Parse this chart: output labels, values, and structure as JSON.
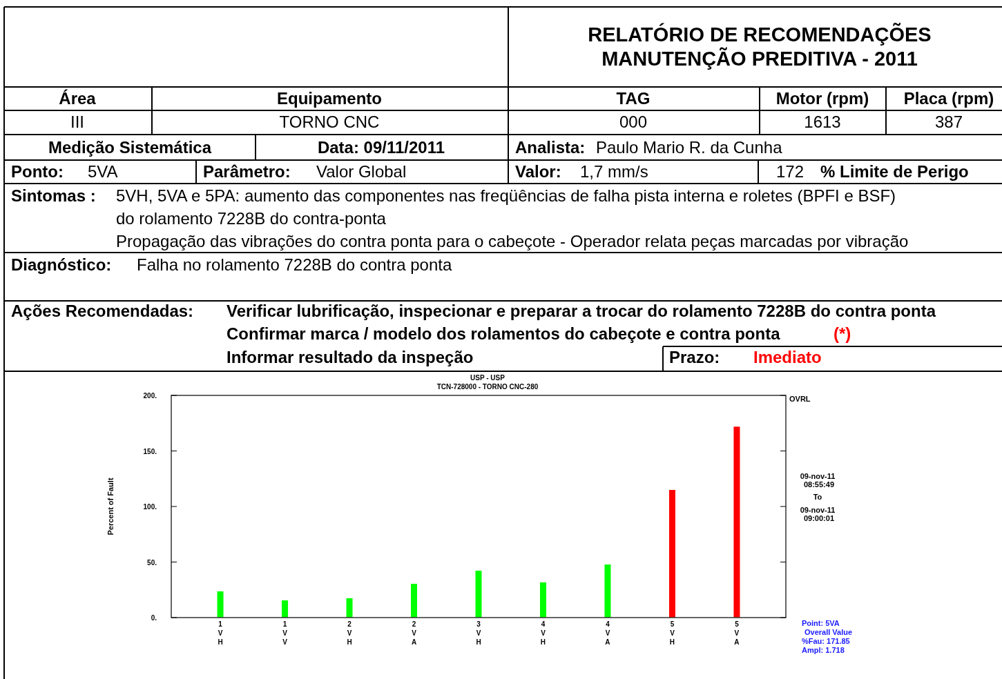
{
  "chart_data": {
    "type": "bar",
    "title": "USP  - USP",
    "subtitle": "TCN-728000 - TORNO CNC-280",
    "ylabel": "Percent of Fault",
    "categories": [
      "1VH",
      "1VV",
      "2VH",
      "2VA",
      "3VH",
      "4VH",
      "4VA",
      "5VH",
      "5VA"
    ],
    "values": [
      23.6,
      15.5,
      17.4,
      30.4,
      42.2,
      31.7,
      47.8,
      114.9,
      171.85
    ],
    "colors": [
      "#00ff00",
      "#00ff00",
      "#00ff00",
      "#00ff00",
      "#00ff00",
      "#00ff00",
      "#00ff00",
      "#ff0000",
      "#ff0000"
    ],
    "ylim": [
      0,
      200
    ],
    "yticks": [
      {
        "value": 0,
        "label": "0."
      },
      {
        "value": 50,
        "label": "50."
      },
      {
        "value": 100,
        "label": "100."
      },
      {
        "value": 150,
        "label": "150."
      },
      {
        "value": 200,
        "label": "200."
      }
    ],
    "grid": false,
    "annotations": [
      "RELATÓRIO DE RECOMENDAÇÕES",
      "MANUTENÇÃO PREDITIVA - 2011",
      "Área",
      "Equipamento",
      "TAG",
      "Motor (rpm)",
      "Placa (rpm)",
      "III",
      "TORNO CNC",
      "000",
      "1613",
      "387",
      "Medição Sistemática",
      "Data: 09/11/2011",
      "Analista:",
      "Paulo Mario R. da Cunha",
      "Ponto:",
      "5VA",
      "Parâmetro:",
      "Valor Global",
      "Valor:",
      "1,7  mm/s",
      "172",
      "% Limite de Perigo",
      "Sintomas :",
      "5VH, 5VA e 5PA: aumento das componentes nas freqüências de falha pista interna e roletes  (BPFI e BSF)",
      "do rolamento 7228B do contra-ponta",
      "Propagação das vibrações do contra ponta para o cabeçote - Operador relata peças marcadas por vibração",
      "Diagnóstico:",
      "Falha no rolamento 7228B do contra ponta",
      "Ações Recomendadas:",
      "Verificar lubrificação, inspecionar e preparar a trocar do rolamento 7228B do contra ponta",
      "Confirmar marca / modelo dos rolamentos do cabeçote e contra ponta",
      "(*)",
      "Informar resultado da inspeção",
      "Prazo:",
      "Imediato",
      "OVRL",
      "09-nov-11",
      "08:55:49",
      "To",
      "09-nov-11",
      "09:00:01",
      "Point:   5VA",
      "Overall Value",
      "%Fau:  171.85",
      "Ampl:    1.718"
    ]
  }
}
